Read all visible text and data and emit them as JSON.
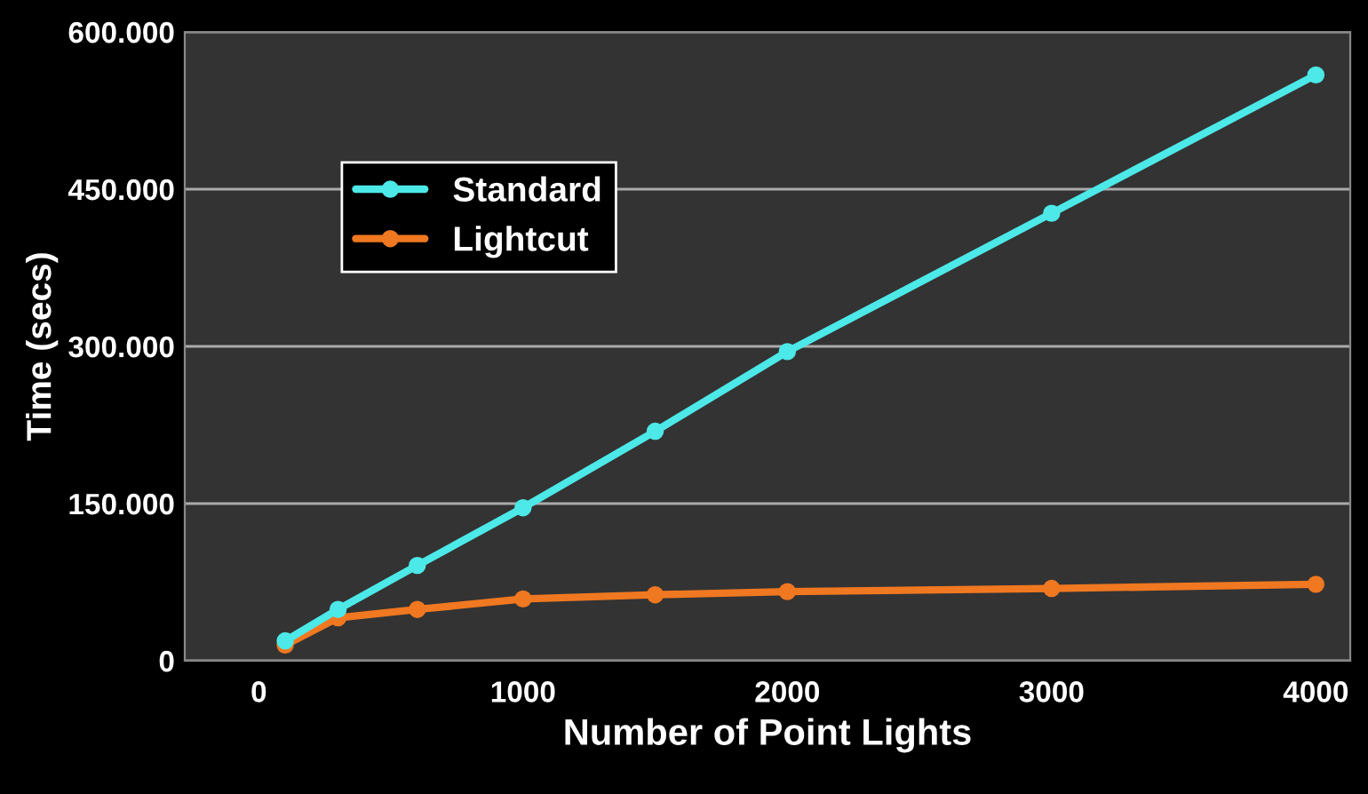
{
  "chart_data": {
    "type": "line",
    "xlabel": "Number of Point Lights",
    "ylabel": "Time (secs)",
    "xlim": [
      -280,
      4130
    ],
    "xticks": [
      0,
      1000,
      2000,
      3000,
      4000
    ],
    "ylim": [
      0,
      600000
    ],
    "yticks": [
      0,
      {
        "value": 150000,
        "label": "150.000"
      },
      {
        "value": 300000,
        "label": "300.000"
      },
      {
        "value": 450000,
        "label": "450.000"
      },
      {
        "value": 600000,
        "label": "600.000"
      }
    ],
    "grid": "y",
    "legend": "top left",
    "marker": "circle",
    "line_style": "solid",
    "series": [
      {
        "name": "Standard",
        "color": "#4de8e8",
        "x": [
          100,
          300,
          600,
          1000,
          1500,
          2000,
          3000,
          4000
        ],
        "values": [
          19000,
          49000,
          91000,
          146000,
          219000,
          295000,
          427000,
          559000
        ]
      },
      {
        "name": "Lightcut",
        "color": "#f07820",
        "x": [
          100,
          300,
          600,
          1000,
          1500,
          2000,
          3000,
          4000
        ],
        "values": [
          15000,
          41000,
          49000,
          59000,
          63000,
          66000,
          69000,
          73000
        ]
      }
    ]
  }
}
